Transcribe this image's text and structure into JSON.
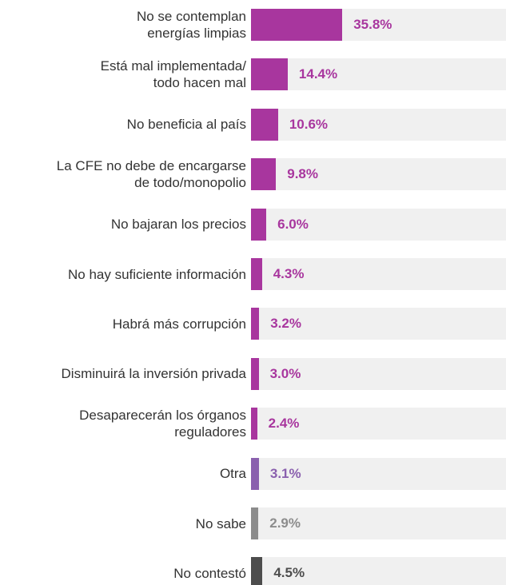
{
  "chart_data": {
    "type": "hbar",
    "categories": [
      "No se contemplan\nenergías limpias",
      "Está mal implementada/\ntodo hacen mal",
      "No beneficia al país",
      "La CFE no debe de encargarse\nde todo/monopolio",
      "No bajaran los precios",
      "No hay suficiente información",
      "Habrá más corrupción",
      "Disminuirá la inversión privada",
      "Desaparecerán los órganos\nreguladores",
      "Otra",
      "No sabe",
      "No contestó"
    ],
    "values": [
      35.8,
      14.4,
      10.6,
      9.8,
      6.0,
      4.3,
      3.2,
      3.0,
      2.4,
      3.1,
      2.9,
      4.5
    ],
    "value_labels": [
      "35.8%",
      "14.4%",
      "10.6%",
      "9.8%",
      "6.0%",
      "4.3%",
      "3.2%",
      "3.0%",
      "2.4%",
      "3.1%",
      "2.9%",
      "4.5%"
    ],
    "colors": [
      "#a8369e",
      "#a8369e",
      "#a8369e",
      "#a8369e",
      "#a8369e",
      "#a8369e",
      "#a8369e",
      "#a8369e",
      "#a8369e",
      "#8a60ae",
      "#8c8c8c",
      "#4d4d4d"
    ],
    "xlim": [
      0,
      100
    ]
  }
}
